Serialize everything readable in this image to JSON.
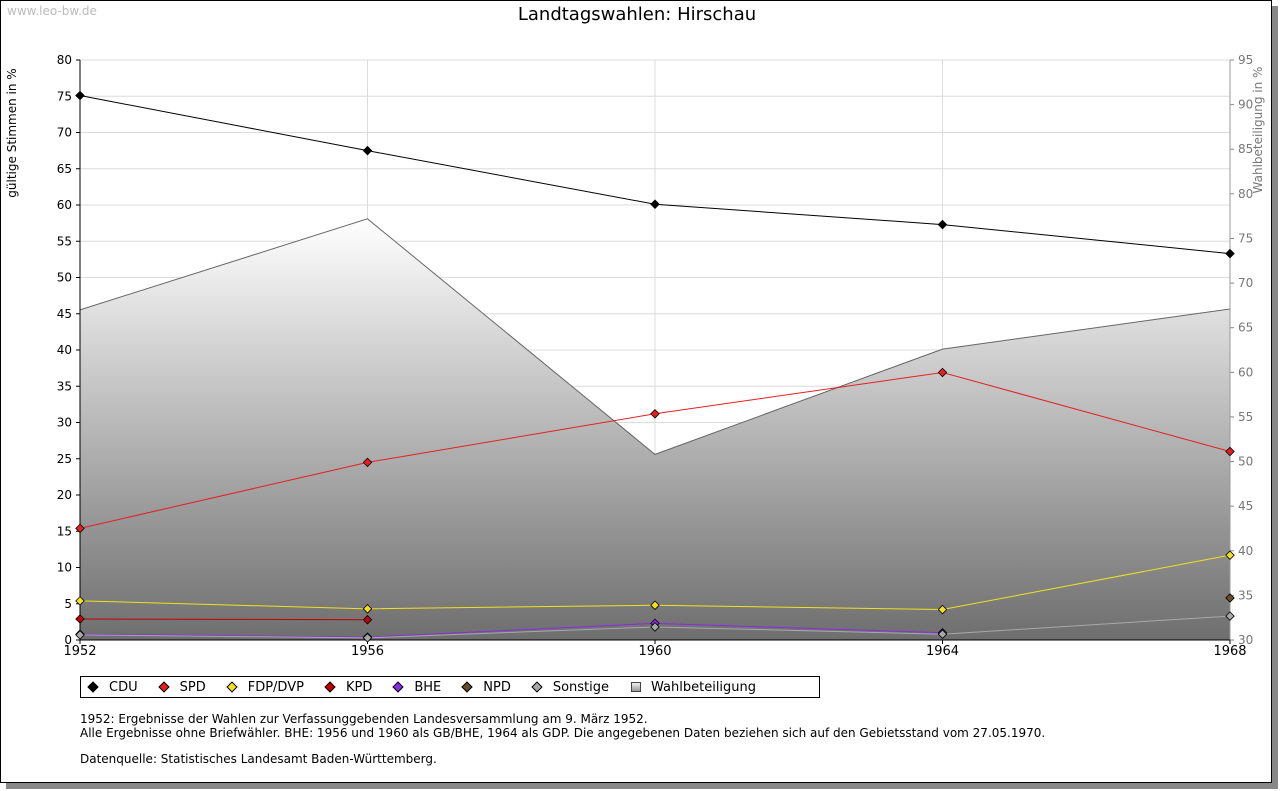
{
  "watermark": "www.leo-bw.de",
  "chart_data": {
    "type": "line",
    "title": "Landtagswahlen: Hirschau",
    "ylabel": "gültige Stimmen in %",
    "y2label": "Wahlbeteiligung in %",
    "x": [
      1952,
      1956,
      1960,
      1964,
      1968
    ],
    "ylim": [
      0,
      80
    ],
    "y2lim": [
      30,
      95
    ],
    "yticks": [
      0,
      5,
      10,
      15,
      20,
      25,
      30,
      35,
      40,
      45,
      50,
      55,
      60,
      65,
      70,
      75,
      80
    ],
    "y2ticks": [
      30,
      35,
      40,
      45,
      50,
      55,
      60,
      65,
      70,
      75,
      80,
      85,
      90,
      95
    ],
    "grid": true,
    "series": [
      {
        "name": "CDU",
        "color": "#000000",
        "values": [
          75.1,
          67.5,
          60.1,
          57.3,
          53.3
        ]
      },
      {
        "name": "SPD",
        "color": "#e32020",
        "values": [
          15.4,
          24.5,
          31.2,
          36.9,
          26.0
        ]
      },
      {
        "name": "FDP/DVP",
        "color": "#f0e020",
        "values": [
          5.4,
          4.3,
          4.8,
          4.2,
          11.7
        ]
      },
      {
        "name": "KPD",
        "color": "#c00000",
        "values": [
          2.9,
          2.8,
          null,
          null,
          null
        ]
      },
      {
        "name": "BHE",
        "color": "#8a2be2",
        "values": [
          0.8,
          0.4,
          2.3,
          1.0,
          null
        ]
      },
      {
        "name": "NPD",
        "color": "#6b4a2a",
        "values": [
          null,
          null,
          null,
          null,
          5.8
        ]
      },
      {
        "name": "Sonstige",
        "color": "#a8a8a8",
        "values": [
          0.7,
          0.3,
          1.8,
          0.8,
          3.3
        ]
      }
    ],
    "turnout": {
      "name": "Wahlbeteiligung",
      "values": [
        67.0,
        77.2,
        50.8,
        62.6,
        67.1
      ]
    }
  },
  "legend_items": [
    {
      "label": "CDU",
      "color": "#000000",
      "type": "dot"
    },
    {
      "label": "SPD",
      "color": "#e32020",
      "type": "dot"
    },
    {
      "label": "FDP/DVP",
      "color": "#f0e020",
      "type": "dot"
    },
    {
      "label": "KPD",
      "color": "#c00000",
      "type": "dot"
    },
    {
      "label": "BHE",
      "color": "#8a2be2",
      "type": "dot"
    },
    {
      "label": "NPD",
      "color": "#6b4a2a",
      "type": "dot"
    },
    {
      "label": "Sonstige",
      "color": "#a8a8a8",
      "type": "dot"
    },
    {
      "label": "Wahlbeteiligung",
      "color": "#aaaaaa",
      "type": "area"
    }
  ],
  "notes": {
    "line1": "1952: Ergebnisse der Wahlen zur Verfassunggebenden Landesversammlung am 9. März 1952.",
    "line2": "Alle Ergebnisse ohne Briefwähler. BHE: 1956 und 1960 als GB/BHE, 1964 als GDP. Die angegebenen Daten beziehen sich auf den Gebietsstand vom 27.05.1970.",
    "line3": "Datenquelle: Statistisches Landesamt Baden-Württemberg."
  }
}
